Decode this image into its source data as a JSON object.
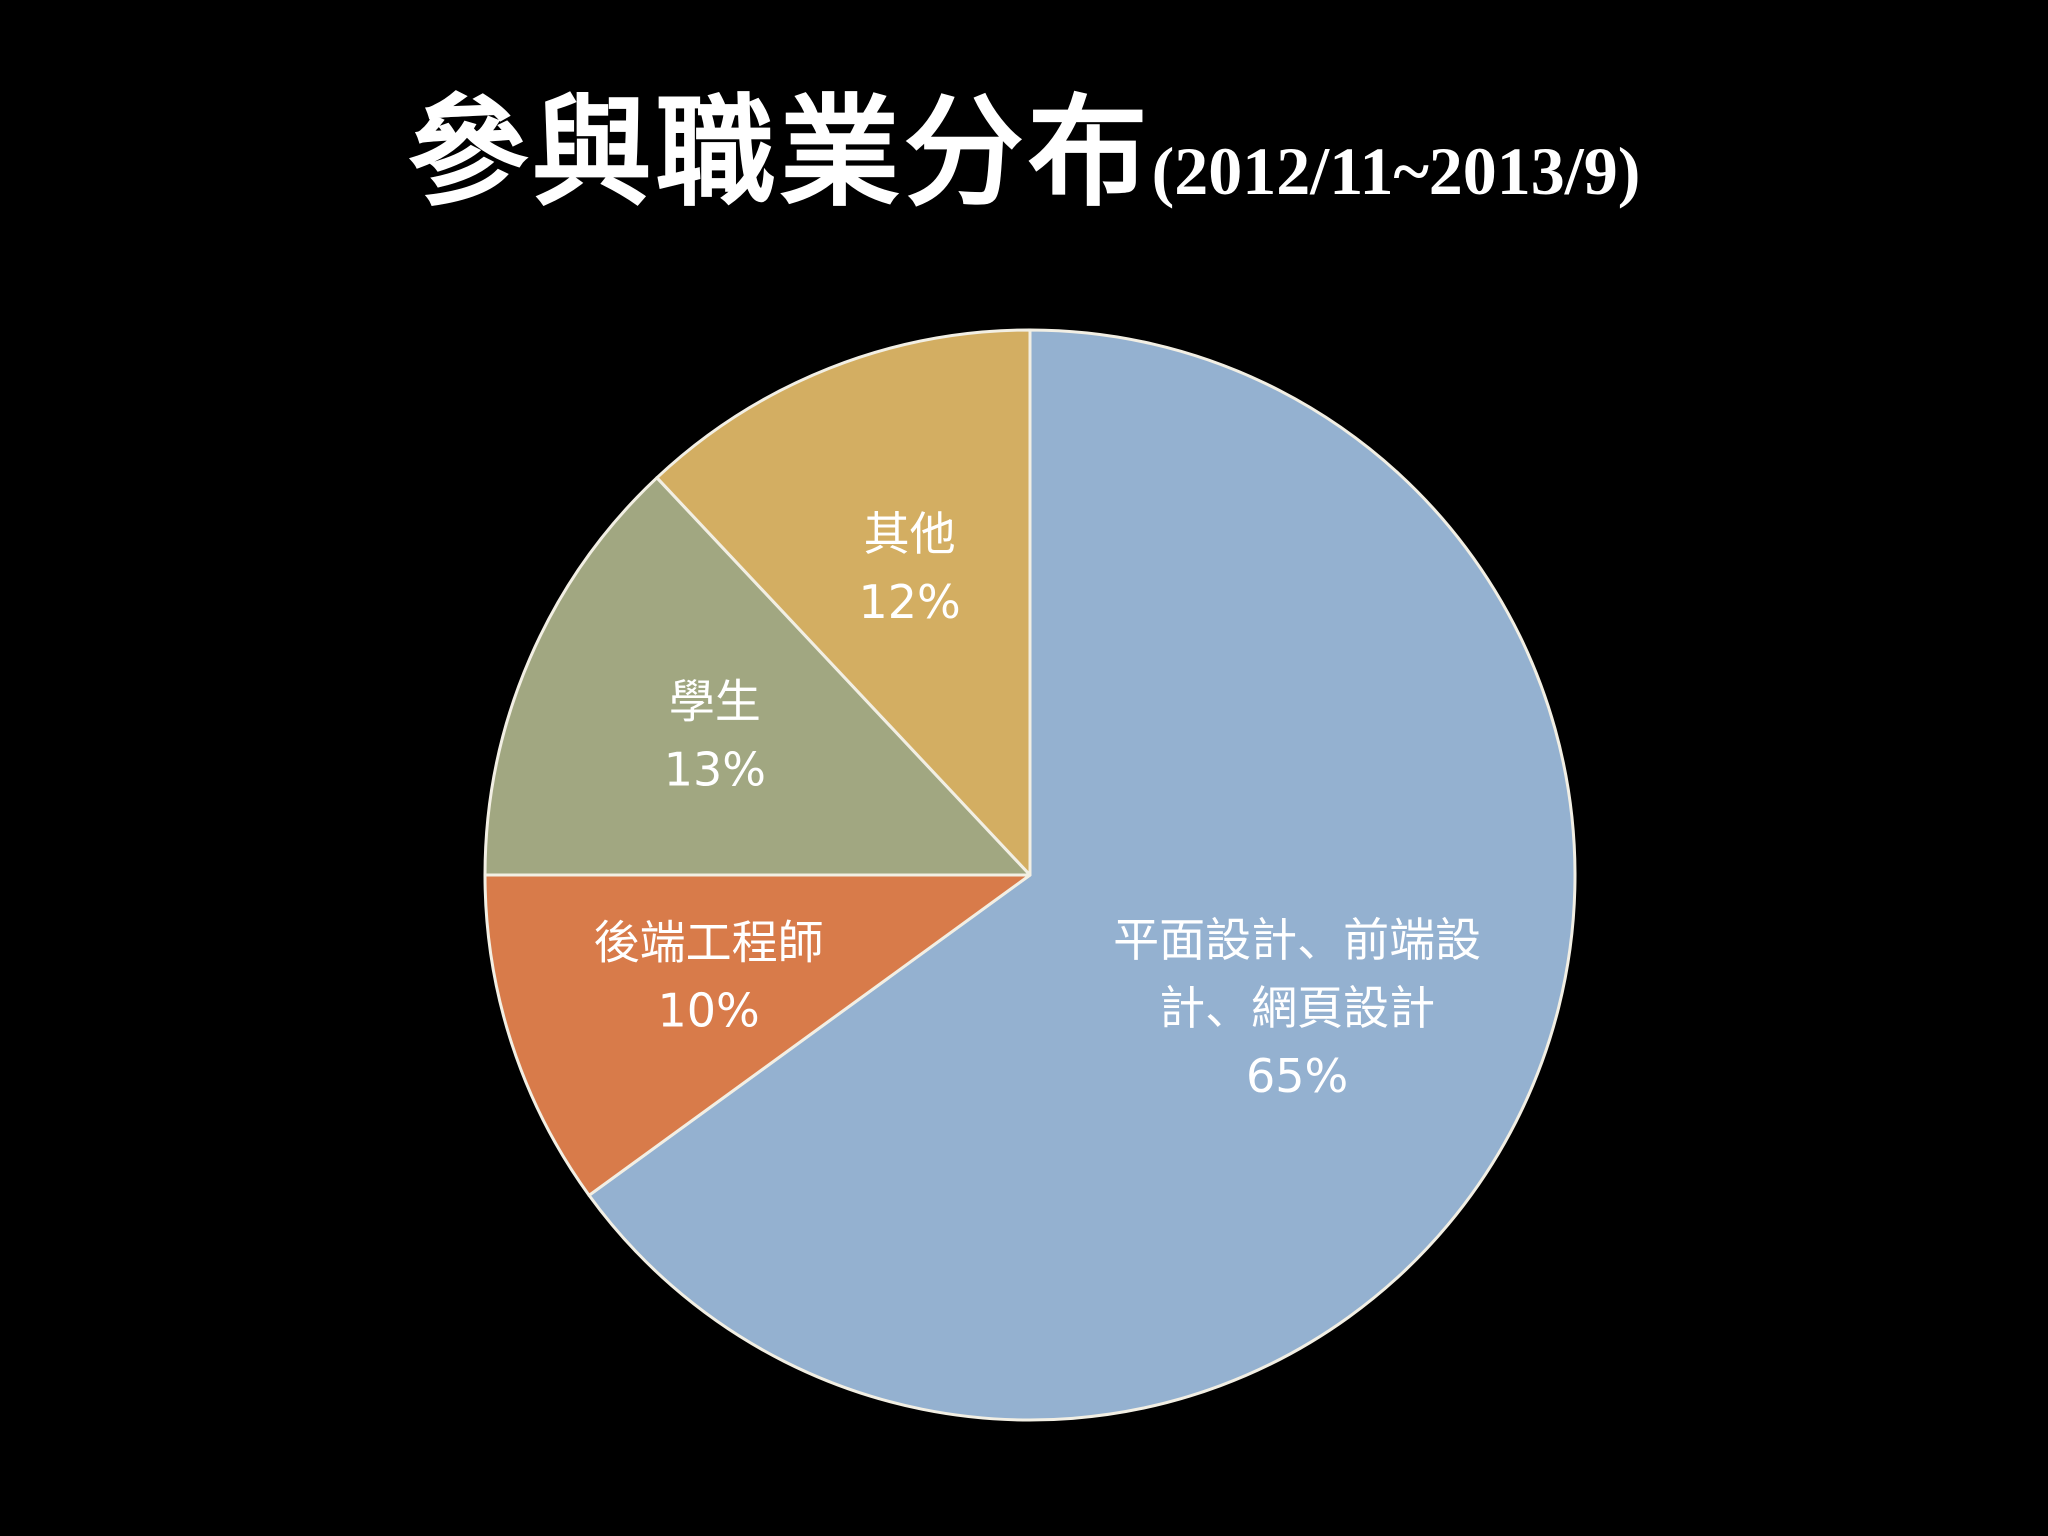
{
  "slide": {
    "title_main": "參與職業分布",
    "title_sub": "(2012/11~2013/9)"
  },
  "chart_data": {
    "type": "pie",
    "title": "參與職業分布(2012/11~2013/9)",
    "start": "12 o'clock",
    "direction": "clockwise",
    "legend": "none (labels on slices)",
    "slices": [
      {
        "label_lines": [
          "平面設計、前端設",
          "計、網頁設計"
        ],
        "percent_label": "65%",
        "value": 65,
        "color": "#94b1d0"
      },
      {
        "label_lines": [
          "後端工程師"
        ],
        "percent_label": "10%",
        "value": 10,
        "color": "#d87b4a"
      },
      {
        "label_lines": [
          "學生"
        ],
        "percent_label": "13%",
        "value": 13,
        "color": "#a1a781"
      },
      {
        "label_lines": [
          "其他"
        ],
        "percent_label": "12%",
        "value": 12,
        "color": "#d3ae62"
      }
    ]
  }
}
